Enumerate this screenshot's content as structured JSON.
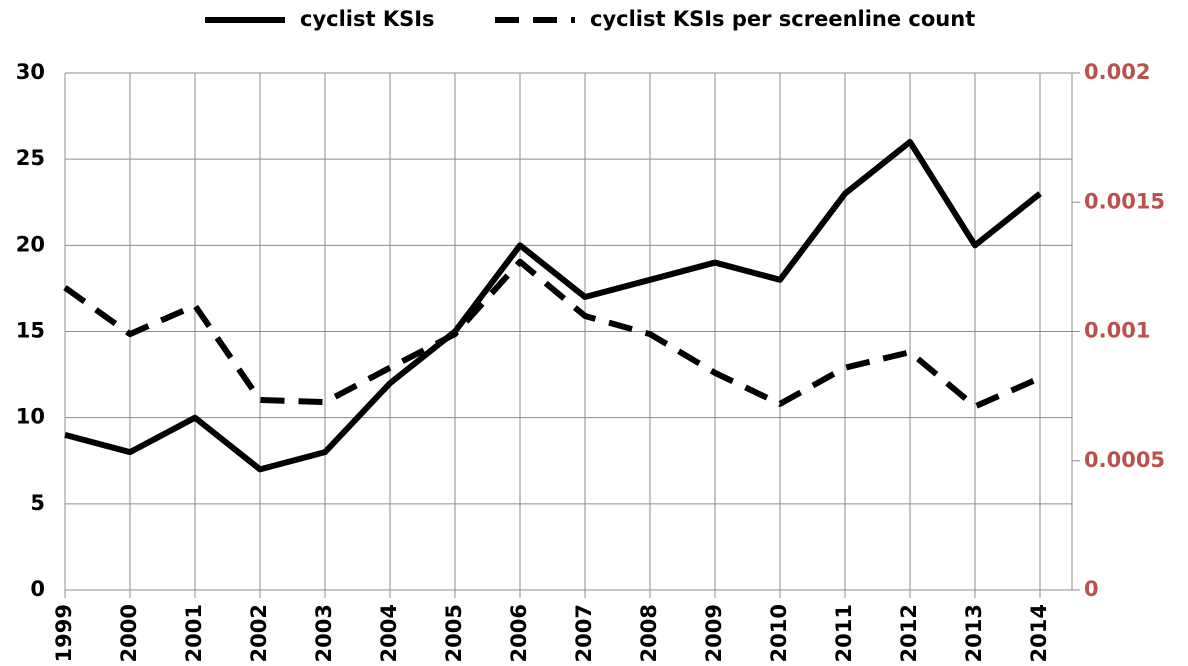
{
  "chart_data": {
    "type": "line",
    "categories": [
      "1999",
      "2000",
      "2001",
      "2002",
      "2003",
      "2004",
      "2005",
      "2006",
      "2007",
      "2008",
      "2009",
      "2010",
      "2011",
      "2012",
      "2013",
      "2014"
    ],
    "series": [
      {
        "name": "cyclist KSIs",
        "color": "#000000",
        "dash": "solid",
        "values": [
          9,
          8,
          10,
          7,
          8,
          12,
          15,
          20,
          17,
          18,
          19,
          18,
          23,
          26,
          20,
          23
        ]
      },
      {
        "name": "cyclist KSIs per screenline count",
        "color": "#000000",
        "dash": "dashed",
        "axis": "y2",
        "values": [
          0.00117,
          0.00099,
          0.0011,
          0.000735,
          0.000727,
          0.00086,
          0.00099,
          0.00127,
          0.00106,
          0.00099,
          0.00084,
          0.00072,
          0.00086,
          0.00092,
          0.00071,
          0.00082
        ]
      }
    ],
    "ylim": [
      0,
      30
    ],
    "yticks": [
      0,
      5,
      10,
      15,
      20,
      25,
      30
    ],
    "y2lim": [
      0,
      0.002
    ],
    "y2ticks": [
      0,
      0.0005,
      0.001,
      0.0015,
      0.002
    ],
    "y2color": "#b9524f",
    "grid": true,
    "legend": "top"
  }
}
